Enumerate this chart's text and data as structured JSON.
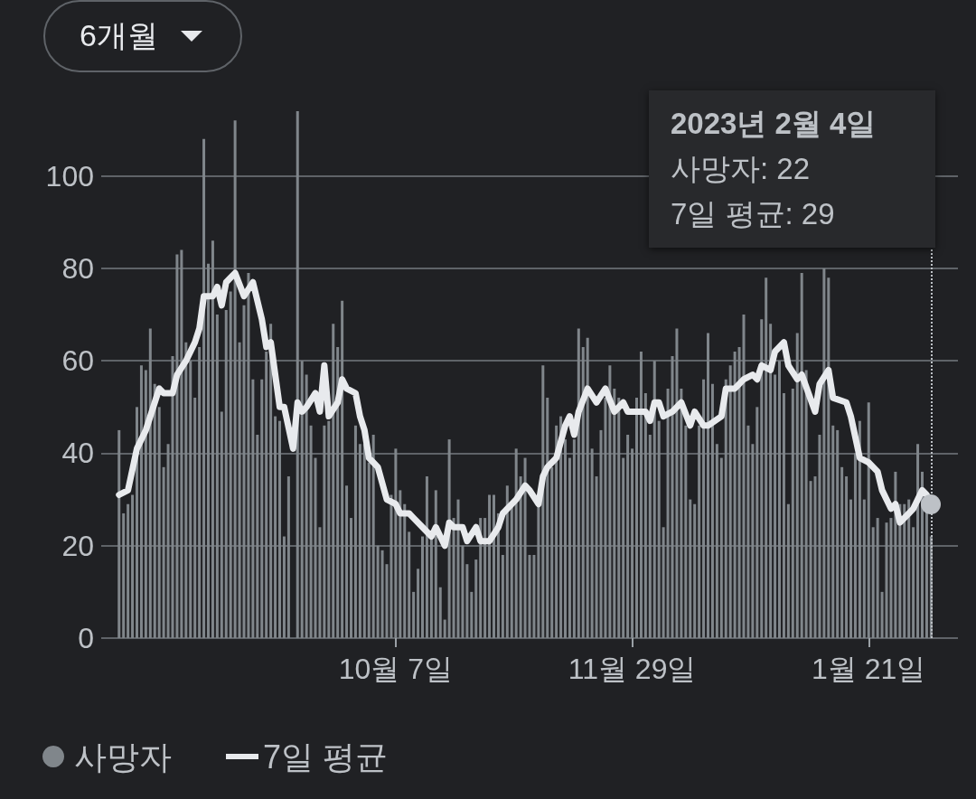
{
  "chart_data": {
    "type": "bar",
    "x": [
      "2022-08-06",
      "2022-08-07",
      "2022-08-08",
      "2022-08-09",
      "2022-08-10",
      "2022-08-11",
      "2022-08-12",
      "2022-08-13",
      "2022-08-14",
      "2022-08-15",
      "2022-08-16",
      "2022-08-17",
      "2022-08-18",
      "2022-08-19",
      "2022-08-20",
      "2022-08-21",
      "2022-08-22",
      "2022-08-23",
      "2022-08-24",
      "2022-08-25",
      "2022-08-26",
      "2022-08-27",
      "2022-08-28",
      "2022-08-29",
      "2022-08-30",
      "2022-08-31",
      "2022-09-01",
      "2022-09-02",
      "2022-09-03",
      "2022-09-04",
      "2022-09-05",
      "2022-09-06",
      "2022-09-07",
      "2022-09-08",
      "2022-09-09",
      "2022-09-10",
      "2022-09-11",
      "2022-09-12",
      "2022-09-13",
      "2022-09-14",
      "2022-09-15",
      "2022-09-16",
      "2022-09-17",
      "2022-09-18",
      "2022-09-19",
      "2022-09-20",
      "2022-09-21",
      "2022-09-22",
      "2022-09-23",
      "2022-09-24",
      "2022-09-25",
      "2022-09-26",
      "2022-09-27",
      "2022-09-28",
      "2022-09-29",
      "2022-09-30",
      "2022-10-01",
      "2022-10-02",
      "2022-10-03",
      "2022-10-04",
      "2022-10-05",
      "2022-10-06",
      "2022-10-07",
      "2022-10-08",
      "2022-10-09",
      "2022-10-10",
      "2022-10-11",
      "2022-10-12",
      "2022-10-13",
      "2022-10-14",
      "2022-10-15",
      "2022-10-16",
      "2022-10-17",
      "2022-10-18",
      "2022-10-19",
      "2022-10-20",
      "2022-10-21",
      "2022-10-22",
      "2022-10-23",
      "2022-10-24",
      "2022-10-25",
      "2022-10-26",
      "2022-10-27",
      "2022-10-28",
      "2022-10-29",
      "2022-10-30",
      "2022-10-31",
      "2022-11-01",
      "2022-11-02",
      "2022-11-03",
      "2022-11-04",
      "2022-11-05",
      "2022-11-06",
      "2022-11-07",
      "2022-11-08",
      "2022-11-09",
      "2022-11-10",
      "2022-11-11",
      "2022-11-12",
      "2022-11-13",
      "2022-11-14",
      "2022-11-15",
      "2022-11-16",
      "2022-11-17",
      "2022-11-18",
      "2022-11-19",
      "2022-11-20",
      "2022-11-21",
      "2022-11-22",
      "2022-11-23",
      "2022-11-24",
      "2022-11-25",
      "2022-11-26",
      "2022-11-27",
      "2022-11-28",
      "2022-11-29",
      "2022-11-30",
      "2022-12-01",
      "2022-12-02",
      "2022-12-03",
      "2022-12-04",
      "2022-12-05",
      "2022-12-06",
      "2022-12-07",
      "2022-12-08",
      "2022-12-09",
      "2022-12-10",
      "2022-12-11",
      "2022-12-12",
      "2022-12-13",
      "2022-12-14",
      "2022-12-15",
      "2022-12-16",
      "2022-12-17",
      "2022-12-18",
      "2022-12-19",
      "2022-12-20",
      "2022-12-21",
      "2022-12-22",
      "2022-12-23",
      "2022-12-24",
      "2022-12-25",
      "2022-12-26",
      "2022-12-27",
      "2022-12-28",
      "2022-12-29",
      "2022-12-30",
      "2022-12-31",
      "2023-01-01",
      "2023-01-02",
      "2023-01-03",
      "2023-01-04",
      "2023-01-05",
      "2023-01-06",
      "2023-01-07",
      "2023-01-08",
      "2023-01-09",
      "2023-01-10",
      "2023-01-11",
      "2023-01-12",
      "2023-01-13",
      "2023-01-14",
      "2023-01-15",
      "2023-01-16",
      "2023-01-17",
      "2023-01-18",
      "2023-01-19",
      "2023-01-20",
      "2023-01-21",
      "2023-01-22",
      "2023-01-23",
      "2023-01-24",
      "2023-01-25",
      "2023-01-26",
      "2023-01-27",
      "2023-01-28",
      "2023-01-29",
      "2023-01-30",
      "2023-01-31",
      "2023-02-01",
      "2023-02-02",
      "2023-02-03",
      "2023-02-04"
    ],
    "series": [
      {
        "name": "사망자",
        "color": "#80868b",
        "values": [
          45,
          27,
          29,
          31,
          50,
          59,
          58,
          67,
          55,
          50,
          37,
          42,
          61,
          83,
          84,
          64,
          60,
          52,
          63,
          108,
          81,
          86,
          70,
          49,
          71,
          75,
          112,
          64,
          72,
          79,
          56,
          44,
          56,
          62,
          68,
          48,
          47,
          22,
          35,
          0,
          114,
          60,
          57,
          46,
          39,
          24,
          46,
          47,
          68,
          63,
          73,
          33,
          26,
          46,
          42,
          42,
          38,
          44,
          20,
          19,
          16,
          31,
          41,
          32,
          29,
          23,
          10,
          15,
          22,
          35,
          22,
          32,
          11,
          4,
          43,
          26,
          30,
          20,
          16,
          10,
          17,
          26,
          26,
          31,
          31,
          27,
          18,
          33,
          29,
          41,
          35,
          39,
          18,
          18,
          29,
          59,
          52,
          37,
          46,
          48,
          43,
          39,
          43,
          67,
          63,
          65,
          41,
          35,
          45,
          52,
          59,
          54,
          52,
          39,
          44,
          41,
          52,
          62,
          53,
          44,
          60,
          47,
          24,
          54,
          61,
          67,
          54,
          46,
          30,
          29,
          46,
          56,
          66,
          55,
          42,
          39,
          56,
          59,
          62,
          63,
          70,
          46,
          42,
          50,
          69,
          78,
          68,
          57,
          60,
          53,
          29,
          54,
          66,
          79,
          58,
          34,
          35,
          44,
          80,
          78,
          46,
          45,
          37,
          35,
          30,
          40,
          47,
          30,
          51,
          24,
          26,
          10,
          25,
          26,
          36,
          29,
          29,
          30,
          24,
          42,
          36,
          28,
          22
        ]
      },
      {
        "name": "7일 평균",
        "type": "line",
        "color": "#e8eaed",
        "x": [
          "2022-08-06",
          "2022-08-08",
          "2022-08-10",
          "2022-08-12",
          "2022-08-13",
          "2022-08-15",
          "2022-08-16",
          "2022-08-18",
          "2022-08-19",
          "2022-08-21",
          "2022-08-23",
          "2022-08-24",
          "2022-08-25",
          "2022-08-27",
          "2022-08-28",
          "2022-08-29",
          "2022-08-30",
          "2022-09-01",
          "2022-09-03",
          "2022-09-05",
          "2022-09-07",
          "2022-09-08",
          "2022-09-09",
          "2022-09-11",
          "2022-09-12",
          "2022-09-14",
          "2022-09-15",
          "2022-09-16",
          "2022-09-17",
          "2022-09-19",
          "2022-09-20",
          "2022-09-21",
          "2022-09-22",
          "2022-09-24",
          "2022-09-25",
          "2022-09-26",
          "2022-09-28",
          "2022-09-29",
          "2022-09-30",
          "2022-10-01",
          "2022-10-03",
          "2022-10-05",
          "2022-10-07",
          "2022-10-08",
          "2022-10-10",
          "2022-10-11",
          "2022-10-13",
          "2022-10-15",
          "2022-10-16",
          "2022-10-18",
          "2022-10-19",
          "2022-10-20",
          "2022-10-22",
          "2022-10-23",
          "2022-10-25",
          "2022-10-26",
          "2022-10-28",
          "2022-10-30",
          "2022-10-31",
          "2022-11-03",
          "2022-11-05",
          "2022-11-06",
          "2022-11-08",
          "2022-11-09",
          "2022-11-10",
          "2022-11-12",
          "2022-11-14",
          "2022-11-15",
          "2022-11-16",
          "2022-11-17",
          "2022-11-19",
          "2022-11-21",
          "2022-11-23",
          "2022-11-25",
          "2022-11-27",
          "2022-11-28",
          "2022-12-02",
          "2022-12-03",
          "2022-12-04",
          "2022-12-05",
          "2022-12-06",
          "2022-12-08",
          "2022-12-10",
          "2022-12-12",
          "2022-12-13",
          "2022-12-15",
          "2022-12-16",
          "2022-12-19",
          "2022-12-20",
          "2022-12-22",
          "2022-12-24",
          "2022-12-26",
          "2022-12-27",
          "2022-12-28",
          "2022-12-30",
          "2022-12-31",
          "2023-01-02",
          "2023-01-03",
          "2023-01-05",
          "2023-01-06",
          "2023-01-09",
          "2023-01-10",
          "2023-01-12",
          "2023-01-13",
          "2023-01-16",
          "2023-01-17",
          "2023-01-19",
          "2023-01-21",
          "2023-01-23",
          "2023-01-24",
          "2023-01-26",
          "2023-01-27",
          "2023-01-28",
          "2023-01-30",
          "2023-01-31",
          "2023-02-02",
          "2023-02-03",
          "2023-02-04"
        ],
        "values": [
          31,
          32,
          41,
          45,
          48,
          54,
          53,
          53,
          57,
          60,
          64,
          67,
          74,
          74,
          76,
          72,
          77,
          79,
          74,
          77,
          69,
          63,
          64,
          50,
          50,
          41,
          51,
          49,
          50,
          53,
          49,
          59,
          48,
          51,
          56,
          54,
          53,
          48,
          45,
          39,
          37,
          30,
          29,
          27,
          27,
          26,
          24,
          22,
          24,
          20,
          25,
          24,
          24,
          21,
          24,
          21,
          21,
          24,
          27,
          30,
          33,
          32,
          29,
          35,
          37,
          39,
          46,
          48,
          44,
          49,
          54,
          51,
          54,
          49,
          51,
          49,
          49,
          47,
          51,
          51,
          48,
          49,
          51,
          46,
          49,
          46,
          46,
          48,
          54,
          54,
          56,
          57,
          56,
          59,
          58,
          62,
          64,
          59,
          56,
          57,
          49,
          55,
          58,
          52,
          51,
          48,
          39,
          38,
          36,
          32,
          28,
          29,
          25,
          27,
          28,
          32,
          31,
          29
        ]
      }
    ],
    "xlim": [
      "2022-08-02",
      "2023-02-10"
    ],
    "xticks": [
      {
        "value": "2022-10-07",
        "label": "10월 7일"
      },
      {
        "value": "2022-11-29",
        "label": "11월 29일"
      },
      {
        "value": "2023-01-21",
        "label": "1월 21일"
      }
    ],
    "ylim": [
      0,
      115
    ],
    "yticks": [
      0,
      20,
      40,
      60,
      80,
      100
    ],
    "grid": "y",
    "legend": "bottom left",
    "ref_lines": [
      {
        "axis": "x",
        "value": "2023-02-04",
        "line_style": "dotted",
        "color": "#bdc1c6"
      }
    ],
    "annotations": [
      "6개월",
      "2023년 2월 4일",
      "사망자: 22",
      "7일 평균: 29"
    ]
  }
}
